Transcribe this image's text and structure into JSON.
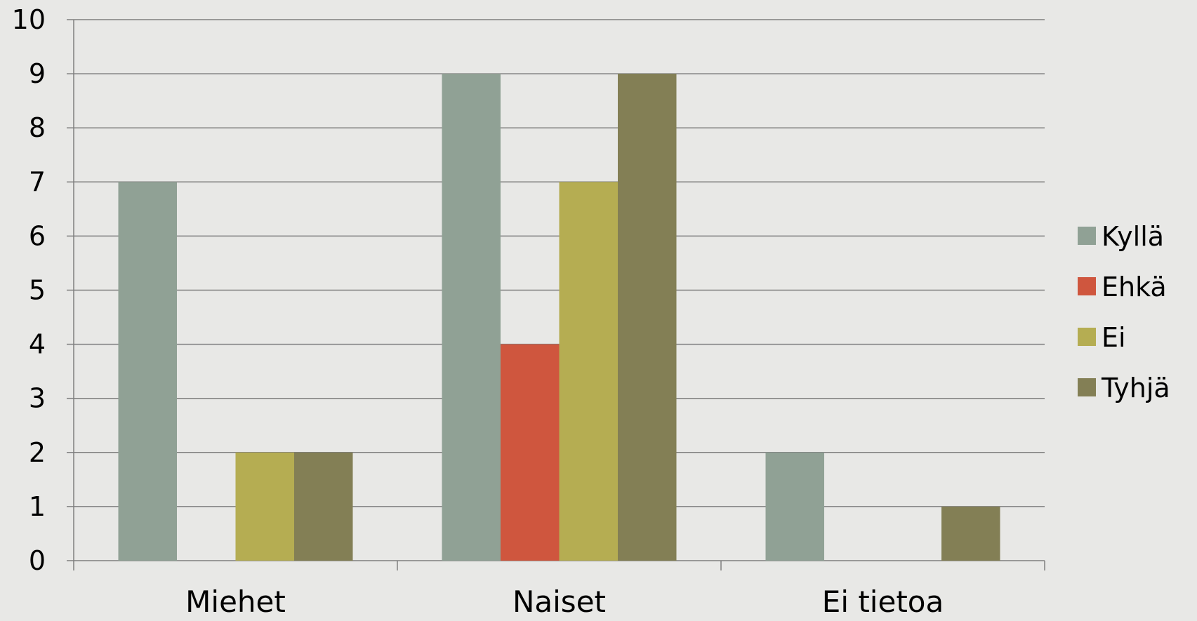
{
  "chart_data": {
    "type": "bar",
    "title": "",
    "xlabel": "",
    "ylabel": "",
    "categories": [
      "Miehet",
      "Naiset",
      "Ei tietoa"
    ],
    "series": [
      {
        "name": "Kyllä",
        "values": [
          7,
          9,
          2
        ],
        "color": "#90a195"
      },
      {
        "name": "Ehkä",
        "values": [
          0,
          4,
          0
        ],
        "color": "#cf563e"
      },
      {
        "name": "Ei",
        "values": [
          2,
          7,
          0
        ],
        "color": "#b5ad52"
      },
      {
        "name": "Tyhjä",
        "values": [
          2,
          9,
          1
        ],
        "color": "#837f55"
      }
    ],
    "ylim": [
      0,
      10
    ],
    "yticks": [
      0,
      1,
      2,
      3,
      4,
      5,
      6,
      7,
      8,
      9,
      10
    ],
    "grid": true,
    "legend_position": "right",
    "gridline_color": "#7f7f7f",
    "axis_color": "#7f7f7f"
  }
}
